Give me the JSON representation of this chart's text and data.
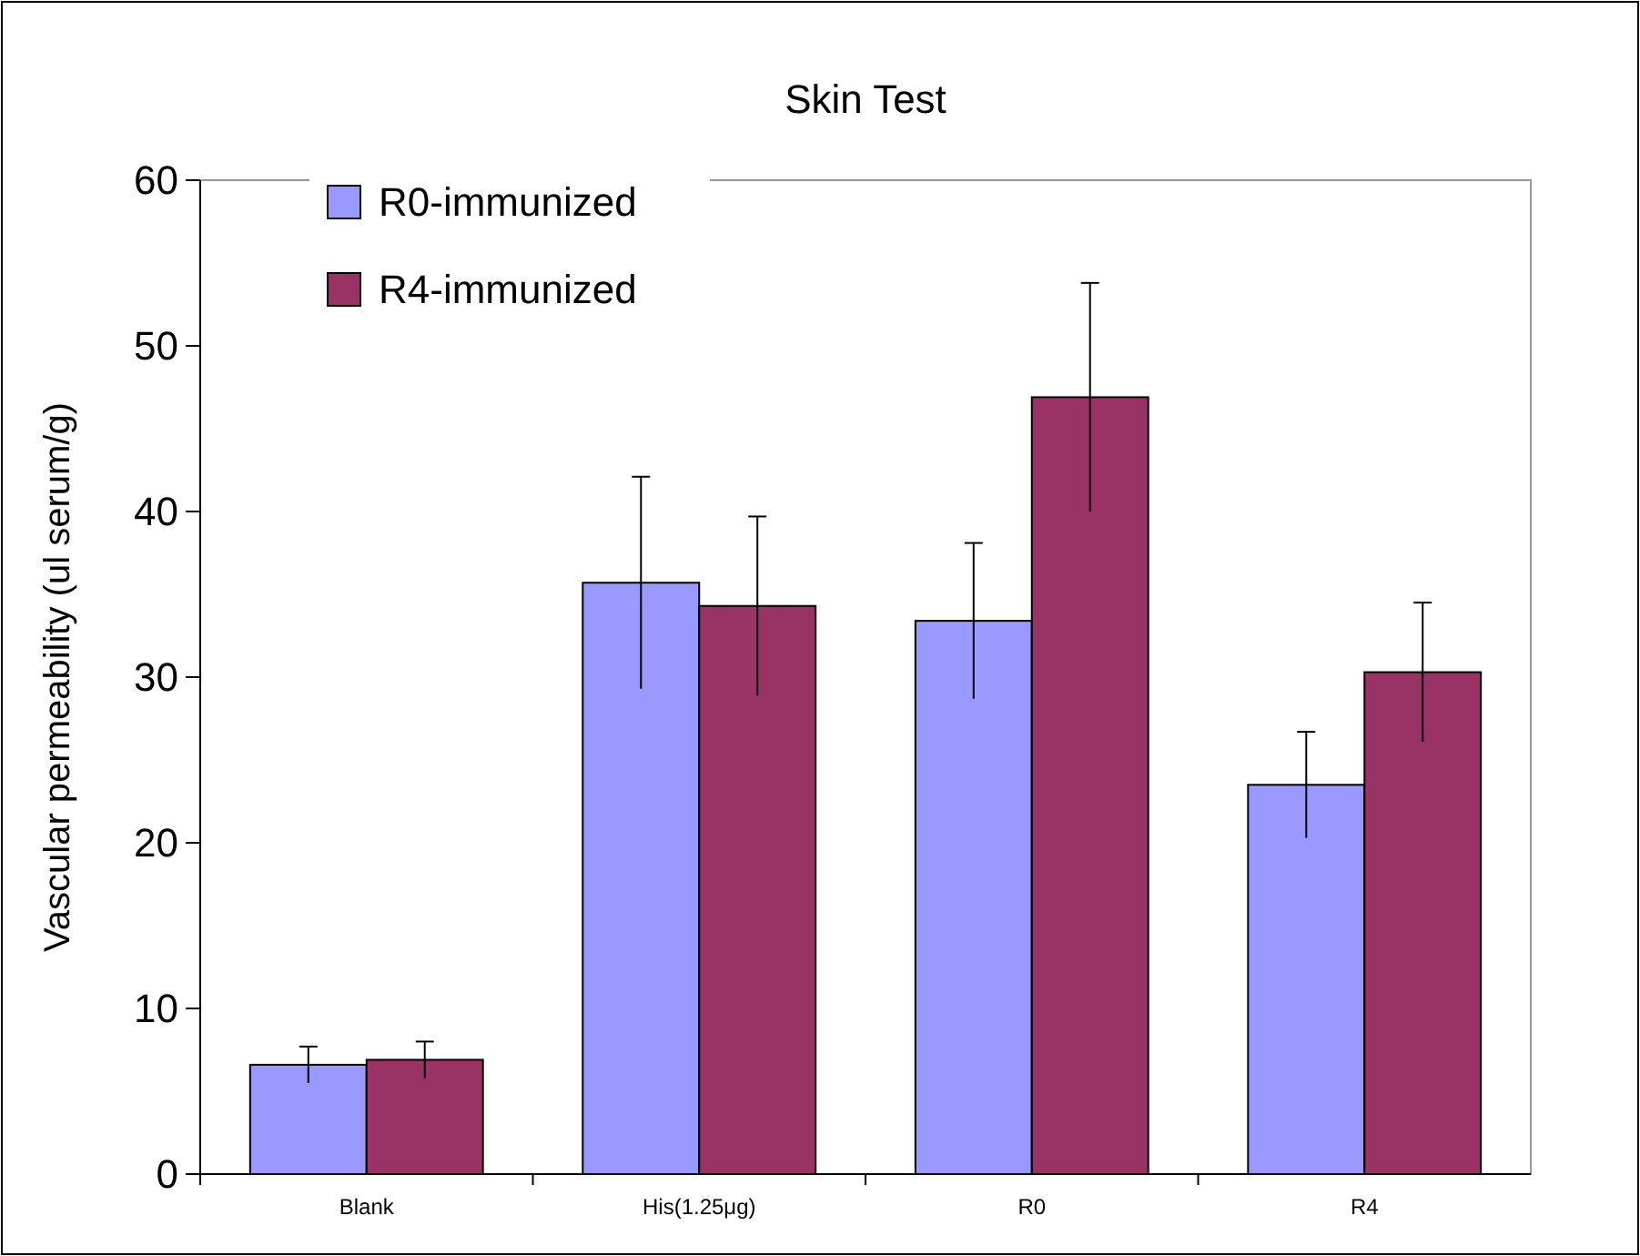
{
  "chart_data": {
    "type": "bar",
    "title": "Skin Test",
    "ylabel": "Vascular permeability (ul serum/g)",
    "categories": [
      "Blank",
      "His(1.25μg)",
      "R0",
      "R4"
    ],
    "series": [
      {
        "name": "R0-immunized",
        "color": "#9999ff",
        "values": [
          6.6,
          35.7,
          33.4,
          23.5
        ],
        "errors": [
          1.1,
          6.4,
          4.7,
          3.2
        ]
      },
      {
        "name": "R4-immunized",
        "color": "#993366",
        "values": [
          6.9,
          34.3,
          46.9,
          30.3
        ],
        "errors": [
          1.1,
          5.4,
          6.9,
          4.2
        ]
      }
    ],
    "ylim": [
      0,
      60
    ],
    "yticks": [
      0,
      10,
      20,
      30,
      40,
      50,
      60
    ],
    "legend": "top left"
  }
}
